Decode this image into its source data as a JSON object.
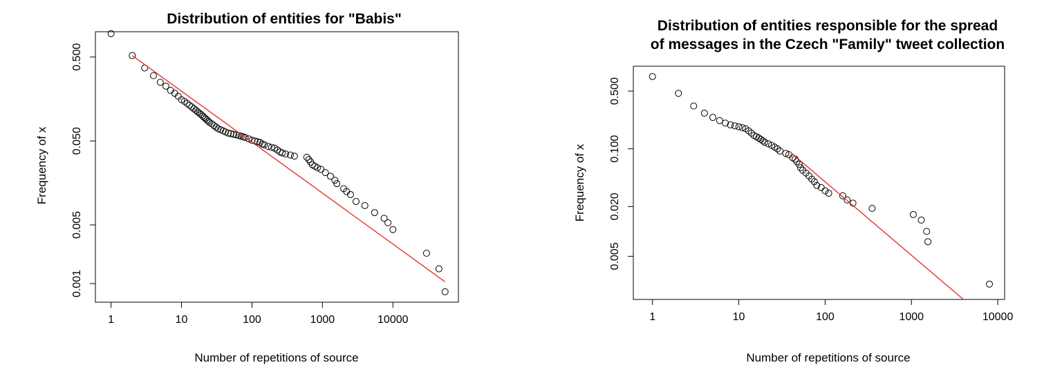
{
  "chart_data": [
    {
      "type": "scatter",
      "title": "Distribution of entities for  \"Babis\"",
      "xlabel": "Number of repetitions of source",
      "ylabel": "Frequency of x",
      "x_scale": "log",
      "y_scale": "log",
      "xlim": [
        0.6,
        85000
      ],
      "ylim": [
        0.0006,
        1.0
      ],
      "x_ticks": [
        1,
        10,
        100,
        1000,
        10000
      ],
      "x_tick_labels": [
        "1",
        "10",
        "100",
        "1000",
        "10000"
      ],
      "y_ticks": [
        0.001,
        0.005,
        0.05,
        0.5
      ],
      "y_tick_labels": [
        "0.001",
        "0.005",
        "0.050",
        "0.500"
      ],
      "grid": false,
      "point_color": "#000000",
      "fit_color": "#e8312c",
      "series": [
        {
          "points": [
            [
              1,
              0.95
            ],
            [
              2,
              0.52
            ],
            [
              3,
              0.37
            ],
            [
              4,
              0.3
            ],
            [
              5,
              0.25
            ],
            [
              6,
              0.225
            ],
            [
              7,
              0.2
            ],
            [
              8,
              0.185
            ],
            [
              9,
              0.17
            ],
            [
              10,
              0.155
            ],
            [
              11,
              0.148
            ],
            [
              12,
              0.14
            ],
            [
              13,
              0.133
            ],
            [
              14,
              0.127
            ],
            [
              15,
              0.121
            ],
            [
              16,
              0.116
            ],
            [
              17,
              0.111
            ],
            [
              18,
              0.107
            ],
            [
              19,
              0.103
            ],
            [
              20,
              0.099
            ],
            [
              21,
              0.095
            ],
            [
              22,
              0.092
            ],
            [
              23,
              0.089
            ],
            [
              24,
              0.086
            ],
            [
              25,
              0.083
            ],
            [
              27,
              0.08
            ],
            [
              29,
              0.076
            ],
            [
              31,
              0.073
            ],
            [
              33,
              0.07
            ],
            [
              36,
              0.068
            ],
            [
              39,
              0.066
            ],
            [
              42,
              0.064
            ],
            [
              46,
              0.062
            ],
            [
              50,
              0.061
            ],
            [
              55,
              0.06
            ],
            [
              60,
              0.059
            ],
            [
              65,
              0.058
            ],
            [
              70,
              0.057
            ],
            [
              75,
              0.056
            ],
            [
              80,
              0.055
            ],
            [
              90,
              0.053
            ],
            [
              100,
              0.051
            ],
            [
              110,
              0.05
            ],
            [
              120,
              0.049
            ],
            [
              130,
              0.048
            ],
            [
              140,
              0.046
            ],
            [
              150,
              0.045
            ],
            [
              170,
              0.043
            ],
            [
              190,
              0.042
            ],
            [
              210,
              0.041
            ],
            [
              230,
              0.039
            ],
            [
              250,
              0.037
            ],
            [
              270,
              0.036
            ],
            [
              300,
              0.035
            ],
            [
              350,
              0.034
            ],
            [
              400,
              0.033
            ],
            [
              600,
              0.032
            ],
            [
              640,
              0.03
            ],
            [
              680,
              0.028
            ],
            [
              720,
              0.026
            ],
            [
              780,
              0.025
            ],
            [
              850,
              0.024
            ],
            [
              950,
              0.023
            ],
            [
              1100,
              0.021
            ],
            [
              1300,
              0.019
            ],
            [
              1500,
              0.017
            ],
            [
              1600,
              0.0155
            ],
            [
              2000,
              0.0135
            ],
            [
              2200,
              0.0125
            ],
            [
              2500,
              0.0115
            ],
            [
              3000,
              0.0095
            ],
            [
              4000,
              0.0085
            ],
            [
              5500,
              0.007
            ],
            [
              7500,
              0.006
            ],
            [
              8500,
              0.0053
            ],
            [
              10000,
              0.0044
            ],
            [
              30000,
              0.0023
            ],
            [
              45000,
              0.0015
            ],
            [
              55000,
              0.0008
            ]
          ]
        }
      ],
      "fit_line": [
        [
          2,
          0.52
        ],
        [
          55000,
          0.00105
        ]
      ]
    },
    {
      "type": "scatter",
      "title_lines": [
        "Distribution of entities responsible for the spread",
        "of messages in the Czech \"Family\" tweet collection"
      ],
      "xlabel": "Number of repetitions of source",
      "ylabel": "Frequency of x",
      "x_scale": "log",
      "y_scale": "log",
      "xlim": [
        0.6,
        12000
      ],
      "ylim": [
        0.0015,
        1.0
      ],
      "x_ticks": [
        1,
        10,
        100,
        1000,
        10000
      ],
      "x_tick_labels": [
        "1",
        "10",
        "100",
        "1000",
        "10000"
      ],
      "y_ticks": [
        0.005,
        0.02,
        0.1,
        0.5
      ],
      "y_tick_labels": [
        "0.005",
        "0.020",
        "0.100",
        "0.500"
      ],
      "grid": false,
      "point_color": "#000000",
      "fit_color": "#e8312c",
      "series": [
        {
          "points": [
            [
              1,
              0.75
            ],
            [
              2,
              0.47
            ],
            [
              3,
              0.33
            ],
            [
              4,
              0.27
            ],
            [
              5,
              0.24
            ],
            [
              6,
              0.22
            ],
            [
              7,
              0.205
            ],
            [
              8,
              0.195
            ],
            [
              9,
              0.19
            ],
            [
              10,
              0.185
            ],
            [
              11,
              0.18
            ],
            [
              12,
              0.175
            ],
            [
              13,
              0.165
            ],
            [
              14,
              0.155
            ],
            [
              15,
              0.145
            ],
            [
              16,
              0.14
            ],
            [
              17,
              0.135
            ],
            [
              18,
              0.13
            ],
            [
              19,
              0.125
            ],
            [
              20,
              0.12
            ],
            [
              22,
              0.115
            ],
            [
              24,
              0.11
            ],
            [
              26,
              0.105
            ],
            [
              28,
              0.1
            ],
            [
              30,
              0.094
            ],
            [
              35,
              0.088
            ],
            [
              38,
              0.085
            ],
            [
              42,
              0.078
            ],
            [
              45,
              0.075
            ],
            [
              47,
              0.07
            ],
            [
              50,
              0.065
            ],
            [
              52,
              0.059
            ],
            [
              55,
              0.055
            ],
            [
              60,
              0.051
            ],
            [
              65,
              0.047
            ],
            [
              70,
              0.043
            ],
            [
              75,
              0.04
            ],
            [
              80,
              0.036
            ],
            [
              90,
              0.034
            ],
            [
              100,
              0.031
            ],
            [
              110,
              0.029
            ],
            [
              160,
              0.027
            ],
            [
              180,
              0.024
            ],
            [
              210,
              0.022
            ],
            [
              350,
              0.019
            ],
            [
              1050,
              0.016
            ],
            [
              1300,
              0.0137
            ],
            [
              1500,
              0.01
            ],
            [
              1550,
              0.0075
            ],
            [
              8000,
              0.0023
            ]
          ]
        }
      ],
      "fit_line": [
        [
          40,
          0.09
        ],
        [
          4000,
          0.0015
        ]
      ]
    }
  ]
}
